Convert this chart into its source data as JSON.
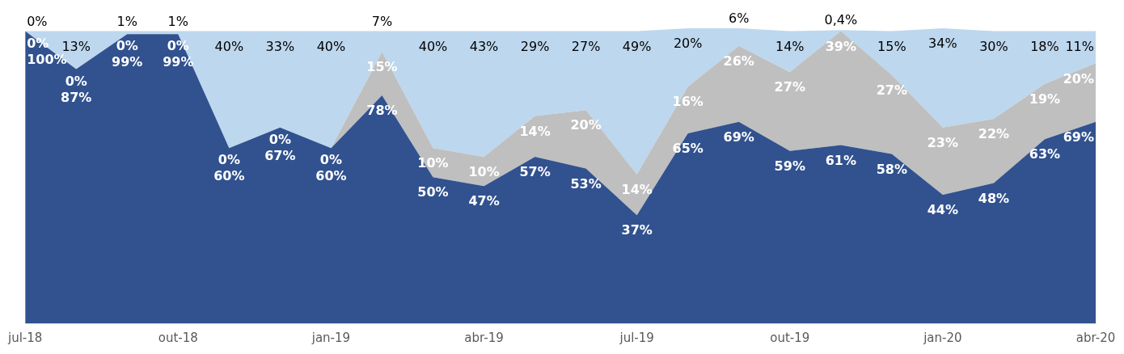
{
  "chart_data": {
    "type": "area",
    "stacked": true,
    "tick_labels": "x",
    "grid": false,
    "legend": false,
    "categories": [
      "jul-18",
      null,
      null,
      "out-18",
      null,
      null,
      "jan-19",
      null,
      null,
      "abr-19",
      null,
      null,
      "jul-19",
      null,
      null,
      "out-19",
      null,
      null,
      "jan-20",
      null,
      null,
      "abr-20"
    ],
    "series": [
      {
        "color": "#31528f",
        "values": [
          100,
          87,
          99,
          99,
          60,
          67,
          60,
          78,
          50,
          47,
          57,
          53,
          37,
          65,
          69,
          59,
          61,
          58,
          44,
          48,
          63,
          69
        ],
        "value_labels": [
          "100%",
          "87%",
          "99%",
          "99%",
          "60%",
          "67%",
          "60%",
          "78%",
          "50%",
          "47%",
          "57%",
          "53%",
          "37%",
          "65%",
          "69%",
          "59%",
          "61%",
          "58%",
          "44%",
          "48%",
          "63%",
          "69%"
        ]
      },
      {
        "color": "#bfbfbf",
        "values": [
          0,
          0,
          0,
          0,
          0,
          0,
          0,
          15,
          10,
          10,
          14,
          20,
          14,
          16,
          26,
          27,
          39,
          27,
          23,
          22,
          19,
          20
        ],
        "value_labels": [
          "0%",
          "0%",
          "0%",
          "0%",
          "0%",
          "0%",
          "0%",
          "15%",
          "10%",
          "10%",
          "14%",
          "20%",
          "14%",
          "16%",
          "26%",
          "27%",
          "39%",
          "27%",
          "23%",
          "22%",
          "19%",
          "20%"
        ]
      },
      {
        "color": "#bdd7ee",
        "values": [
          0,
          13,
          1,
          1,
          40,
          33,
          40,
          7,
          40,
          43,
          29,
          27,
          49,
          20,
          6,
          14,
          0.4,
          15,
          34,
          30,
          18,
          11
        ],
        "value_labels": [
          "0%",
          "13%",
          "1%",
          "1%",
          "40%",
          "33%",
          "40%",
          "7%",
          "40%",
          "43%",
          "29%",
          "27%",
          "49%",
          "20%",
          "6%",
          "14%",
          "0,4%",
          "15%",
          "34%",
          "30%",
          "18%",
          "11%"
        ]
      }
    ]
  }
}
